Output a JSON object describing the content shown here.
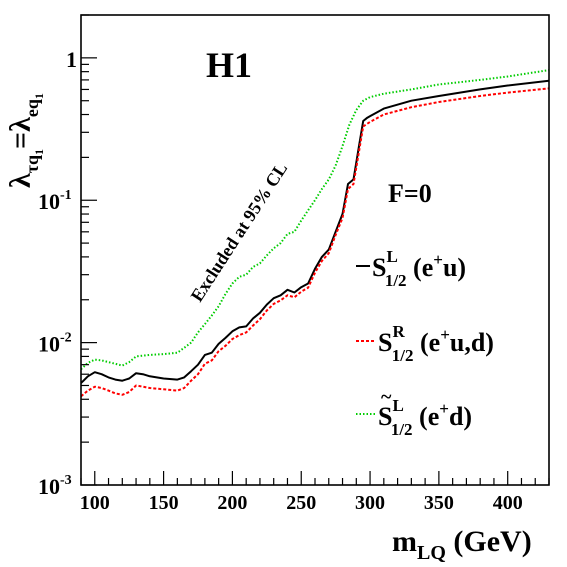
{
  "chart_data": {
    "type": "line",
    "experiment_label": "H1",
    "xlabel": {
      "main": "m",
      "sub": "LQ",
      "unit": " (GeV)"
    },
    "ylabel": {
      "lambda": "λ",
      "sub1": "τq",
      "sub1_idx": "1",
      "eq": "=",
      "lambda2": "λ",
      "sub2": "eq",
      "sub2_idx": "1"
    },
    "xlim": [
      90,
      430
    ],
    "ylim": [
      0.001,
      2
    ],
    "yscale": "log",
    "grid": false,
    "x_ticks": [
      "100",
      "150",
      "200",
      "250",
      "300",
      "350",
      "400"
    ],
    "y_ticks": [
      {
        "base": "10",
        "exp": "-3"
      },
      {
        "base": "10",
        "exp": "-2"
      },
      {
        "base": "10",
        "exp": "-1"
      },
      {
        "base": "1",
        "exp": ""
      }
    ],
    "annotation": "Excluded at 95% CL",
    "coupling_label": "F=0",
    "legend_position": "right",
    "series": [
      {
        "key": "s12L",
        "legend": {
          "prefix": "S",
          "sup": "L",
          "sub": "1/2",
          "tail": " (e",
          "tail_sup": "+",
          "tail_end": "u)"
        },
        "color": "#000000",
        "dash": "solid",
        "x": [
          90,
          95,
          100,
          105,
          110,
          115,
          120,
          125,
          130,
          135,
          140,
          150,
          160,
          165,
          170,
          175,
          180,
          185,
          190,
          195,
          200,
          205,
          210,
          215,
          220,
          225,
          230,
          235,
          240,
          245,
          250,
          255,
          260,
          265,
          270,
          275,
          280,
          284,
          288,
          292,
          295,
          298,
          300,
          310,
          330,
          350,
          380,
          400,
          430
        ],
        "y": [
          0.0052,
          0.0058,
          0.0062,
          0.006,
          0.0057,
          0.0055,
          0.0054,
          0.0056,
          0.0061,
          0.006,
          0.0058,
          0.0056,
          0.0055,
          0.0057,
          0.0063,
          0.007,
          0.0082,
          0.0085,
          0.0098,
          0.0108,
          0.012,
          0.0128,
          0.013,
          0.0148,
          0.0162,
          0.0185,
          0.0205,
          0.0215,
          0.0235,
          0.0225,
          0.0245,
          0.026,
          0.033,
          0.04,
          0.045,
          0.06,
          0.08,
          0.13,
          0.14,
          0.24,
          0.36,
          0.38,
          0.39,
          0.44,
          0.5,
          0.54,
          0.6,
          0.64,
          0.69
        ]
      },
      {
        "key": "s12R",
        "legend": {
          "prefix": "S",
          "sup": "R",
          "sub": "1/2",
          "tail": " (e",
          "tail_sup": "+",
          "tail_end": "u,d)"
        },
        "color": "#ff0000",
        "dash": "dashed",
        "x": [
          90,
          95,
          100,
          105,
          110,
          115,
          120,
          125,
          130,
          135,
          140,
          150,
          160,
          165,
          170,
          175,
          180,
          185,
          190,
          195,
          200,
          205,
          210,
          215,
          220,
          225,
          230,
          235,
          240,
          245,
          250,
          255,
          260,
          265,
          270,
          275,
          280,
          284,
          288,
          292,
          295,
          298,
          300,
          310,
          330,
          350,
          380,
          400,
          430
        ],
        "y": [
          0.0042,
          0.0046,
          0.0049,
          0.0048,
          0.0046,
          0.0044,
          0.0043,
          0.0045,
          0.005,
          0.0049,
          0.0048,
          0.0047,
          0.0046,
          0.0048,
          0.0054,
          0.006,
          0.0071,
          0.0075,
          0.0087,
          0.0095,
          0.0106,
          0.0113,
          0.0118,
          0.0132,
          0.0146,
          0.0168,
          0.0187,
          0.0198,
          0.0215,
          0.0208,
          0.0228,
          0.0243,
          0.031,
          0.0375,
          0.0425,
          0.057,
          0.075,
          0.12,
          0.13,
          0.22,
          0.33,
          0.345,
          0.355,
          0.4,
          0.45,
          0.49,
          0.54,
          0.57,
          0.61
        ]
      },
      {
        "key": "s12Lt",
        "legend": {
          "prefix": "S",
          "tilde": true,
          "sup": "L",
          "sub": "1/2",
          "tail": " (e",
          "tail_sup": "+",
          "tail_end": "d)"
        },
        "color": "#00cc00",
        "dash": "dotted",
        "x": [
          90,
          95,
          100,
          105,
          110,
          115,
          120,
          125,
          130,
          140,
          150,
          160,
          165,
          170,
          175,
          180,
          185,
          190,
          195,
          200,
          205,
          210,
          215,
          220,
          225,
          230,
          235,
          240,
          245,
          250,
          255,
          260,
          265,
          270,
          275,
          280,
          285,
          290,
          295,
          300,
          310,
          330,
          350,
          380,
          400,
          430
        ],
        "y": [
          0.0065,
          0.0072,
          0.0076,
          0.0075,
          0.0073,
          0.0071,
          0.0069,
          0.0073,
          0.008,
          0.0082,
          0.0083,
          0.0085,
          0.0092,
          0.01,
          0.0118,
          0.0135,
          0.0155,
          0.018,
          0.022,
          0.026,
          0.029,
          0.03,
          0.034,
          0.036,
          0.041,
          0.046,
          0.05,
          0.058,
          0.06,
          0.072,
          0.085,
          0.1,
          0.12,
          0.14,
          0.175,
          0.24,
          0.34,
          0.43,
          0.5,
          0.53,
          0.56,
          0.6,
          0.65,
          0.7,
          0.74,
          0.82
        ]
      }
    ]
  }
}
